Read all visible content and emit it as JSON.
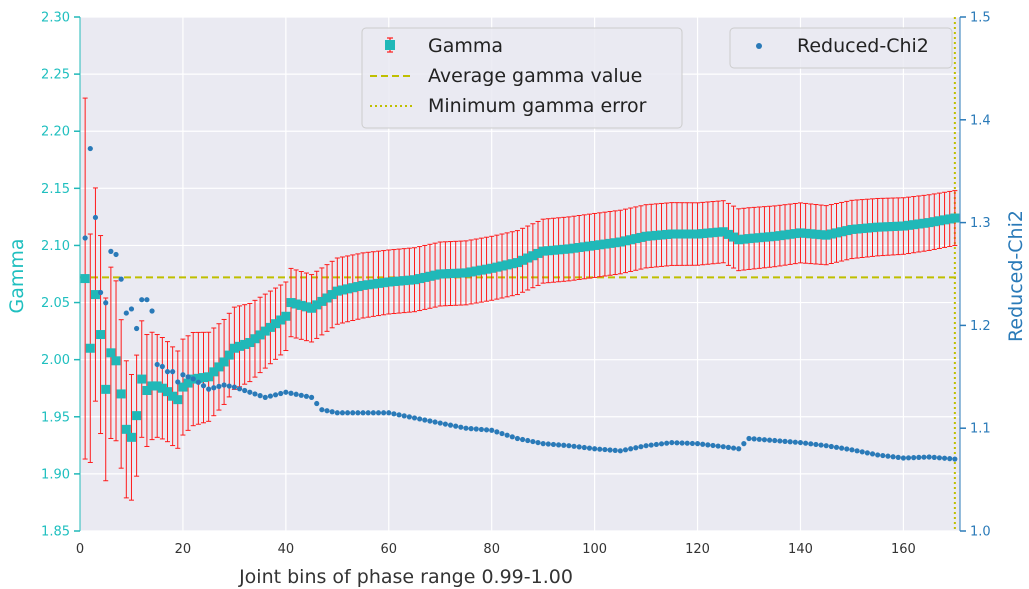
{
  "chart_data": {
    "type": "scatter",
    "xlabel": "Joint bins of phase range 0.99-1.00",
    "ylabel": "Gamma",
    "y2label": "Reduced-Chi2",
    "xlim": [
      0,
      171
    ],
    "ylim": [
      1.85,
      2.3
    ],
    "y2lim": [
      1.0,
      1.5
    ],
    "xticks": [
      "0",
      "20",
      "40",
      "60",
      "80",
      "100",
      "120",
      "140",
      "160"
    ],
    "yticks": [
      "1.85",
      "1.90",
      "1.95",
      "2.00",
      "2.05",
      "2.10",
      "2.15",
      "2.20",
      "2.25",
      "2.30"
    ],
    "y2ticks": [
      "1.0",
      "1.1",
      "1.2",
      "1.3",
      "1.4",
      "1.5"
    ],
    "average_gamma": 2.072,
    "min_error_bin": 170,
    "gamma_anchors": {
      "x": [
        1,
        2,
        3,
        4,
        5,
        6,
        7,
        8,
        9,
        10,
        11,
        12,
        13,
        14,
        15,
        16,
        17,
        18,
        19,
        20,
        22,
        25,
        28,
        30,
        33,
        36,
        40,
        41,
        45,
        50,
        55,
        60,
        65,
        70,
        75,
        80,
        85,
        90,
        95,
        100,
        105,
        110,
        115,
        120,
        125,
        128,
        130,
        135,
        140,
        145,
        150,
        155,
        160,
        165,
        170
      ],
      "y": [
        2.071,
        2.01,
        2.057,
        2.022,
        1.974,
        2.006,
        1.999,
        1.97,
        1.939,
        1.932,
        1.951,
        1.983,
        1.973,
        1.977,
        1.977,
        1.975,
        1.972,
        1.968,
        1.965,
        1.976,
        1.983,
        1.985,
        1.998,
        2.01,
        2.015,
        2.025,
        2.038,
        2.05,
        2.045,
        2.06,
        2.065,
        2.068,
        2.07,
        2.075,
        2.076,
        2.08,
        2.085,
        2.095,
        2.097,
        2.1,
        2.103,
        2.108,
        2.11,
        2.11,
        2.112,
        2.105,
        2.106,
        2.108,
        2.111,
        2.109,
        2.114,
        2.116,
        2.117,
        2.12,
        2.124
      ]
    },
    "error_anchors": {
      "x": [
        1,
        2,
        5,
        10,
        15,
        20,
        30,
        40,
        60,
        80,
        100,
        130,
        170
      ],
      "y": [
        0.158,
        0.1,
        0.08,
        0.055,
        0.045,
        0.042,
        0.036,
        0.03,
        0.028,
        0.028,
        0.028,
        0.027,
        0.024
      ]
    },
    "chi2_anchors": {
      "x": [
        1,
        2,
        3,
        4,
        5,
        6,
        7,
        8,
        9,
        10,
        11,
        12,
        13,
        14,
        15,
        16,
        17,
        18,
        19,
        20,
        22,
        25,
        28,
        30,
        33,
        36,
        40,
        45,
        47,
        50,
        55,
        60,
        65,
        70,
        75,
        80,
        85,
        90,
        95,
        100,
        105,
        110,
        115,
        120,
        125,
        128,
        130,
        135,
        140,
        145,
        150,
        155,
        160,
        165,
        170
      ],
      "y": [
        1.285,
        1.372,
        1.305,
        1.232,
        1.222,
        1.272,
        1.269,
        1.245,
        1.212,
        1.216,
        1.197,
        1.225,
        1.225,
        1.214,
        1.162,
        1.16,
        1.155,
        1.155,
        1.145,
        1.152,
        1.148,
        1.138,
        1.142,
        1.14,
        1.135,
        1.13,
        1.135,
        1.13,
        1.118,
        1.115,
        1.115,
        1.115,
        1.11,
        1.105,
        1.1,
        1.098,
        1.09,
        1.085,
        1.083,
        1.08,
        1.078,
        1.083,
        1.086,
        1.085,
        1.082,
        1.08,
        1.09,
        1.088,
        1.086,
        1.083,
        1.079,
        1.074,
        1.071,
        1.072,
        1.07
      ]
    },
    "colors": {
      "gamma": "#20b8b8",
      "errorbar": "#ff1a1a",
      "chi2": "#2a7ab8",
      "reference": "#bfbf00",
      "plot_bg": "#eaeaf2",
      "grid": "#ffffff"
    }
  },
  "legend": {
    "gamma": "Gamma",
    "average": "Average gamma value",
    "min_error": "Minimum gamma error",
    "chi2": "Reduced-Chi2"
  }
}
